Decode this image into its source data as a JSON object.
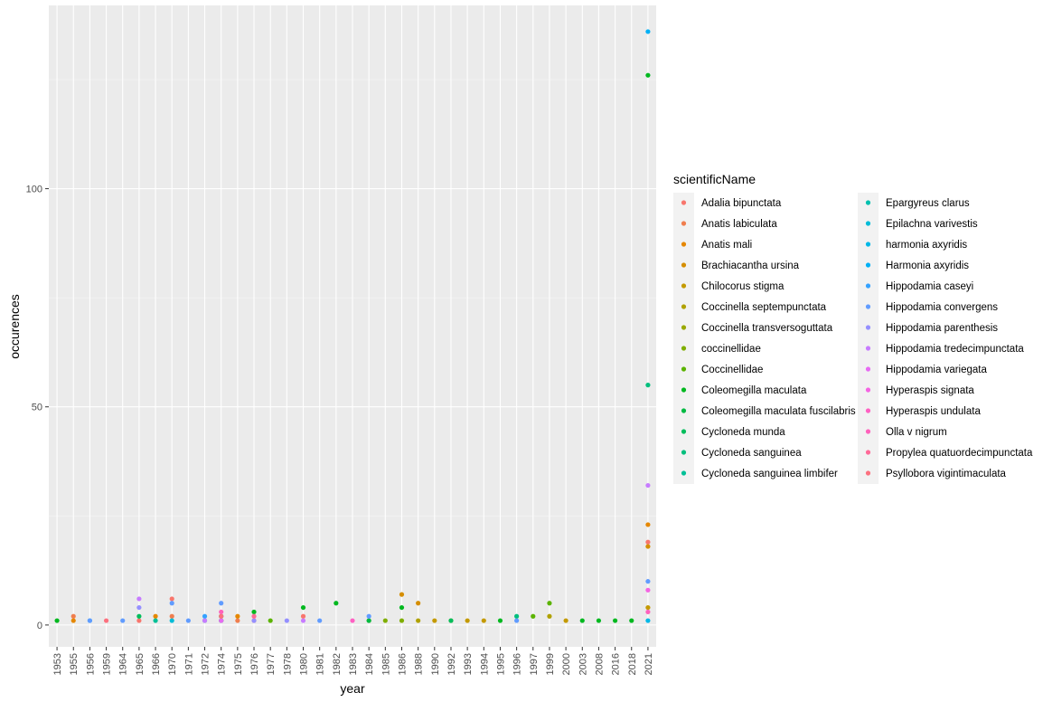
{
  "chart_data": {
    "type": "scatter",
    "xlabel": "year",
    "ylabel": "occurences",
    "ylim": [
      -5,
      142
    ],
    "y_ticks": [
      0,
      50,
      100
    ],
    "grid": true,
    "legend_placement": "right",
    "legend_title": "scientificName",
    "categories": [
      "1953",
      "1955",
      "1956",
      "1959",
      "1964",
      "1965",
      "1966",
      "1970",
      "1971",
      "1972",
      "1974",
      "1975",
      "1976",
      "1977",
      "1978",
      "1980",
      "1981",
      "1982",
      "1983",
      "1984",
      "1985",
      "1986",
      "1988",
      "1990",
      "1992",
      "1993",
      "1994",
      "1995",
      "1996",
      "1997",
      "1999",
      "2000",
      "2003",
      "2008",
      "2016",
      "2018",
      "2021"
    ],
    "series": [
      {
        "name": "Adalia bipunctata",
        "color": "#F8766D",
        "points": [
          [
            "1965",
            1
          ],
          [
            "1970",
            6
          ],
          [
            "1976",
            1
          ],
          [
            "1980",
            2
          ],
          [
            "2021",
            19
          ]
        ]
      },
      {
        "name": "Anatis labiculata",
        "color": "#F07E4E",
        "points": [
          [
            "1955",
            2
          ],
          [
            "1970",
            2
          ],
          [
            "1975",
            1
          ]
        ]
      },
      {
        "name": "Anatis mali",
        "color": "#E58700",
        "points": [
          [
            "1955",
            1
          ],
          [
            "1966",
            2
          ],
          [
            "1975",
            2
          ],
          [
            "2021",
            23
          ]
        ]
      },
      {
        "name": "Brachiacantha ursina",
        "color": "#D58E00",
        "points": [
          [
            "1986",
            7
          ],
          [
            "1988",
            5
          ],
          [
            "2021",
            18
          ]
        ]
      },
      {
        "name": "Chilocorus stigma",
        "color": "#C49A00",
        "points": [
          [
            "1990",
            1
          ],
          [
            "1992",
            1
          ],
          [
            "1993",
            1
          ],
          [
            "1994",
            1
          ],
          [
            "2000",
            1
          ],
          [
            "2021",
            4
          ]
        ]
      },
      {
        "name": "Coccinella septempunctata",
        "color": "#B0A100",
        "points": [
          [
            "1988",
            1
          ],
          [
            "1999",
            2
          ]
        ]
      },
      {
        "name": "Coccinella transversoguttata",
        "color": "#99A800",
        "points": [
          [
            "1974",
            1
          ],
          [
            "1984",
            1
          ]
        ]
      },
      {
        "name": "coccinellidae",
        "color": "#7FAE00",
        "points": [
          [
            "1985",
            1
          ],
          [
            "1986",
            1
          ]
        ]
      },
      {
        "name": "Coccinellidae",
        "color": "#5BB300",
        "points": [
          [
            "1977",
            1
          ],
          [
            "1997",
            2
          ],
          [
            "1999",
            5
          ]
        ]
      },
      {
        "name": "Coleomegilla maculata",
        "color": "#00B81F",
        "points": [
          [
            "1953",
            1
          ],
          [
            "1976",
            3
          ],
          [
            "1980",
            4
          ],
          [
            "1982",
            5
          ],
          [
            "1986",
            4
          ],
          [
            "1995",
            1
          ],
          [
            "2003",
            1
          ],
          [
            "2008",
            1
          ],
          [
            "2016",
            1
          ],
          [
            "2018",
            1
          ],
          [
            "2021",
            126
          ]
        ]
      },
      {
        "name": "Coleomegilla maculata fuscilabris",
        "color": "#00BA42",
        "points": [
          [
            "1974",
            2
          ],
          [
            "1984",
            1
          ]
        ]
      },
      {
        "name": "Cycloneda munda",
        "color": "#00BD5C",
        "points": [
          [
            "1965",
            2
          ],
          [
            "1992",
            1
          ]
        ]
      },
      {
        "name": "Cycloneda sanguinea",
        "color": "#00BF7D",
        "points": [
          [
            "1996",
            2
          ],
          [
            "2021",
            55
          ]
        ]
      },
      {
        "name": "Cycloneda sanguinea limbifer",
        "color": "#00C097",
        "points": [
          [
            "1966",
            1
          ],
          [
            "1972",
            1
          ]
        ]
      },
      {
        "name": "Epargyreus clarus",
        "color": "#00C0AF",
        "points": [
          [
            "1974",
            1
          ]
        ]
      },
      {
        "name": "Epilachna varivestis",
        "color": "#00BCD8",
        "points": [
          [
            "1970",
            1
          ]
        ]
      },
      {
        "name": "harmonia axyridis",
        "color": "#00B8E7",
        "points": [
          [
            "2021",
            1
          ]
        ]
      },
      {
        "name": "Harmonia axyridis",
        "color": "#00B0F6",
        "points": [
          [
            "1956",
            1
          ],
          [
            "2021",
            136
          ]
        ]
      },
      {
        "name": "Hippodamia caseyi",
        "color": "#35A2FF",
        "points": [
          [
            "1972",
            2
          ]
        ]
      },
      {
        "name": "Hippodamia convergens",
        "color": "#619CFF",
        "points": [
          [
            "1956",
            1
          ],
          [
            "1964",
            1
          ],
          [
            "1970",
            5
          ],
          [
            "1971",
            1
          ],
          [
            "1974",
            5
          ],
          [
            "1981",
            1
          ],
          [
            "1984",
            2
          ],
          [
            "1996",
            1
          ],
          [
            "2021",
            10
          ]
        ]
      },
      {
        "name": "Hippodamia parenthesis",
        "color": "#9590FF",
        "points": [
          [
            "1965",
            4
          ],
          [
            "1976",
            1
          ],
          [
            "1978",
            1
          ]
        ]
      },
      {
        "name": "Hippodamia tredecimpunctata",
        "color": "#C77CFF",
        "points": [
          [
            "1965",
            6
          ],
          [
            "1972",
            1
          ],
          [
            "1980",
            1
          ],
          [
            "2021",
            32
          ]
        ]
      },
      {
        "name": "Hippodamia variegata",
        "color": "#E76BF3",
        "points": [
          [
            "1974",
            1
          ]
        ]
      },
      {
        "name": "Hyperaspis signata",
        "color": "#F564E3",
        "points": [
          [
            "2021",
            8
          ]
        ]
      },
      {
        "name": "Hyperaspis undulata",
        "color": "#FF61C3",
        "points": [
          [
            "1983",
            1
          ]
        ]
      },
      {
        "name": "Olla v nigrum",
        "color": "#FF62BC",
        "points": [
          [
            "1974",
            3
          ],
          [
            "2021",
            3
          ]
        ]
      },
      {
        "name": "Propylea quatuordecimpunctata",
        "color": "#FF6A98",
        "points": [
          [
            "1976",
            2
          ]
        ]
      },
      {
        "name": "Psyllobora vigintimaculata",
        "color": "#FC717F",
        "points": [
          [
            "1959",
            1
          ],
          [
            "1974",
            2
          ]
        ]
      }
    ]
  }
}
